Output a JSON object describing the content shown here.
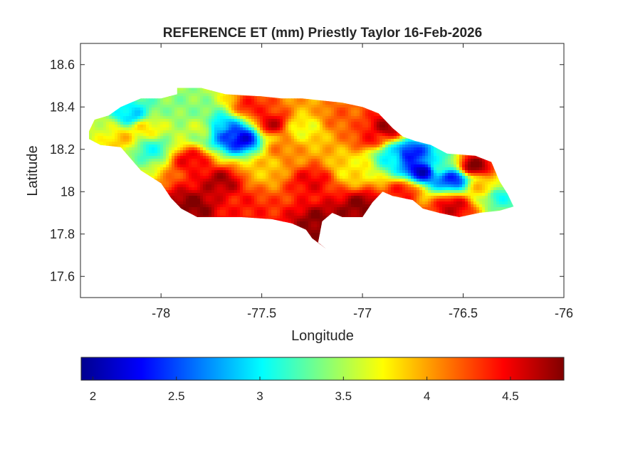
{
  "chart_data": {
    "type": "heatmap",
    "title": "REFERENCE ET (mm) Priestly Taylor 16-Feb-2026",
    "xlabel": "Longitude",
    "ylabel": "Latitude",
    "xlim": [
      -78.4,
      -76
    ],
    "ylim": [
      17.5,
      18.7
    ],
    "xticks": [
      -78,
      -77.5,
      -77,
      -76.5,
      -76
    ],
    "xtick_labels": [
      "-78",
      "-77.5",
      "-77",
      "-76.5",
      "-76"
    ],
    "yticks": [
      17.6,
      17.8,
      18,
      18.2,
      18.4,
      18.6
    ],
    "ytick_labels": [
      "17.6",
      "17.8",
      "18",
      "18.2",
      "18.4",
      "18.6"
    ],
    "grid": false,
    "colormap": "jet",
    "colorbar": {
      "orientation": "horizontal",
      "location": "bottom",
      "range": [
        1.93,
        4.82
      ],
      "ticks": [
        2,
        2.5,
        3,
        3.5,
        4,
        4.5
      ],
      "tick_labels": [
        "2",
        "2.5",
        "3",
        "3.5",
        "4",
        "4.5"
      ]
    },
    "outline": [
      [
        -78.36,
        18.28
      ],
      [
        -78.33,
        18.34
      ],
      [
        -78.26,
        18.36
      ],
      [
        -78.2,
        18.4
      ],
      [
        -78.1,
        18.44
      ],
      [
        -78.0,
        18.44
      ],
      [
        -77.92,
        18.46
      ],
      [
        -77.92,
        18.49
      ],
      [
        -77.8,
        18.49
      ],
      [
        -77.68,
        18.46
      ],
      [
        -77.5,
        18.45
      ],
      [
        -77.4,
        18.44
      ],
      [
        -77.3,
        18.44
      ],
      [
        -77.2,
        18.43
      ],
      [
        -77.1,
        18.42
      ],
      [
        -77.0,
        18.4
      ],
      [
        -76.92,
        18.37
      ],
      [
        -76.85,
        18.3
      ],
      [
        -76.8,
        18.26
      ],
      [
        -76.74,
        18.24
      ],
      [
        -76.66,
        18.22
      ],
      [
        -76.58,
        18.18
      ],
      [
        -76.44,
        18.17
      ],
      [
        -76.36,
        18.14
      ],
      [
        -76.32,
        18.05
      ],
      [
        -76.28,
        17.99
      ],
      [
        -76.25,
        17.93
      ],
      [
        -76.32,
        17.91
      ],
      [
        -76.42,
        17.9
      ],
      [
        -76.52,
        17.88
      ],
      [
        -76.62,
        17.9
      ],
      [
        -76.7,
        17.92
      ],
      [
        -76.75,
        17.96
      ],
      [
        -76.85,
        17.98
      ],
      [
        -76.9,
        18.0
      ],
      [
        -76.95,
        17.95
      ],
      [
        -77.0,
        17.88
      ],
      [
        -77.1,
        17.88
      ],
      [
        -77.15,
        17.9
      ],
      [
        -77.2,
        17.86
      ],
      [
        -77.22,
        17.76
      ],
      [
        -77.18,
        17.73
      ],
      [
        -77.25,
        17.78
      ],
      [
        -77.28,
        17.82
      ],
      [
        -77.35,
        17.85
      ],
      [
        -77.45,
        17.87
      ],
      [
        -77.6,
        17.88
      ],
      [
        -77.72,
        17.88
      ],
      [
        -77.82,
        17.88
      ],
      [
        -77.9,
        17.92
      ],
      [
        -77.95,
        17.97
      ],
      [
        -78.0,
        18.04
      ],
      [
        -78.1,
        18.1
      ],
      [
        -78.2,
        18.21
      ],
      [
        -78.3,
        18.22
      ],
      [
        -78.36,
        18.25
      ]
    ],
    "field": [
      {
        "lon": -78.15,
        "lat": 18.36,
        "value": 2.9
      },
      {
        "lon": -78.3,
        "lat": 18.3,
        "value": 3.6
      },
      {
        "lon": -78.05,
        "lat": 18.2,
        "value": 3.1
      },
      {
        "lon": -78.08,
        "lat": 18.3,
        "value": 3.8
      },
      {
        "lon": -77.88,
        "lat": 18.4,
        "value": 3.4
      },
      {
        "lon": -77.8,
        "lat": 18.3,
        "value": 3.6
      },
      {
        "lon": -77.85,
        "lat": 18.15,
        "value": 4.5
      },
      {
        "lon": -77.65,
        "lat": 18.27,
        "value": 2.4
      },
      {
        "lon": -77.6,
        "lat": 18.25,
        "value": 2.2
      },
      {
        "lon": -77.7,
        "lat": 18.3,
        "value": 2.8
      },
      {
        "lon": -77.55,
        "lat": 18.4,
        "value": 4.4
      },
      {
        "lon": -77.7,
        "lat": 18.05,
        "value": 4.7
      },
      {
        "lon": -77.85,
        "lat": 17.93,
        "value": 4.8
      },
      {
        "lon": -77.5,
        "lat": 18.1,
        "value": 3.9
      },
      {
        "lon": -77.4,
        "lat": 18.2,
        "value": 4.1
      },
      {
        "lon": -77.3,
        "lat": 18.3,
        "value": 3.7
      },
      {
        "lon": -77.2,
        "lat": 17.85,
        "value": 4.8
      },
      {
        "lon": -77.25,
        "lat": 18.05,
        "value": 4.5
      },
      {
        "lon": -77.1,
        "lat": 18.35,
        "value": 4.2
      },
      {
        "lon": -77.05,
        "lat": 18.1,
        "value": 3.8
      },
      {
        "lon": -77.0,
        "lat": 17.93,
        "value": 4.8
      },
      {
        "lon": -76.95,
        "lat": 18.25,
        "value": 4.4
      },
      {
        "lon": -76.88,
        "lat": 18.3,
        "value": 4.7
      },
      {
        "lon": -76.85,
        "lat": 18.18,
        "value": 3.0
      },
      {
        "lon": -76.77,
        "lat": 18.18,
        "value": 2.3
      },
      {
        "lon": -76.7,
        "lat": 18.1,
        "value": 2.1
      },
      {
        "lon": -76.55,
        "lat": 18.06,
        "value": 2.4
      },
      {
        "lon": -76.62,
        "lat": 18.12,
        "value": 3.2
      },
      {
        "lon": -76.45,
        "lat": 18.12,
        "value": 4.8
      },
      {
        "lon": -76.4,
        "lat": 18.02,
        "value": 3.9
      },
      {
        "lon": -76.32,
        "lat": 17.98,
        "value": 3.1
      },
      {
        "lon": -76.55,
        "lat": 17.93,
        "value": 4.6
      },
      {
        "lon": -76.8,
        "lat": 18.0,
        "value": 4.4
      },
      {
        "lon": -77.6,
        "lat": 17.93,
        "value": 4.4
      },
      {
        "lon": -78.2,
        "lat": 18.25,
        "value": 3.9
      },
      {
        "lon": -77.45,
        "lat": 18.32,
        "value": 4.6
      }
    ]
  }
}
